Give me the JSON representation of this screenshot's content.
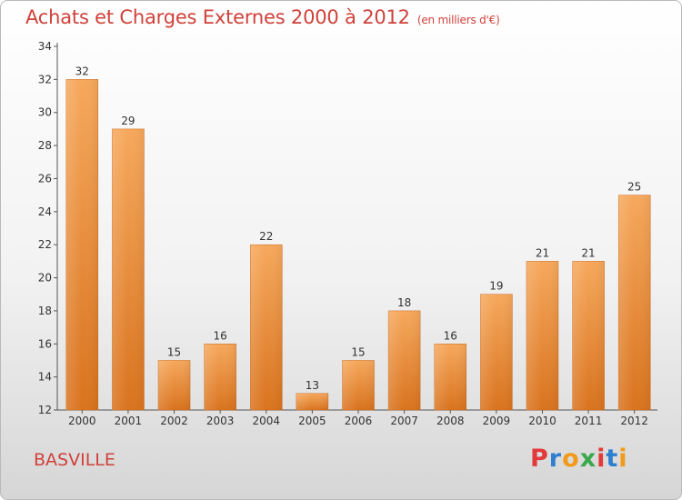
{
  "header": {
    "title": "Achats et Charges Externes 2000 à 2012",
    "subtitle": "(en milliers d'€)"
  },
  "footer": {
    "city": "BASVILLE",
    "logo_letters": [
      "P",
      "r",
      "o",
      "x",
      "i",
      "t",
      "i"
    ],
    "logo_colors": [
      "#e23a3a",
      "#2f7fd0",
      "#f29a1a",
      "#3aa84a",
      "#e23a3a",
      "#2f7fd0",
      "#f29a1a"
    ]
  },
  "chart_data": {
    "type": "bar",
    "title": "Achats et Charges Externes 2000 à 2012",
    "subtitle": "(en milliers d'€)",
    "categories": [
      "2000",
      "2001",
      "2002",
      "2003",
      "2004",
      "2005",
      "2006",
      "2007",
      "2008",
      "2009",
      "2010",
      "2011",
      "2012"
    ],
    "values": [
      32,
      29,
      15,
      16,
      22,
      13,
      15,
      18,
      16,
      19,
      21,
      21,
      25
    ],
    "ylim": [
      12,
      34
    ],
    "yticks": [
      12,
      14,
      16,
      18,
      20,
      22,
      24,
      26,
      28,
      30,
      32,
      34
    ],
    "xlabel": "",
    "ylabel": "",
    "grid": false,
    "legend": "none",
    "bar_color": "#e8892f"
  }
}
